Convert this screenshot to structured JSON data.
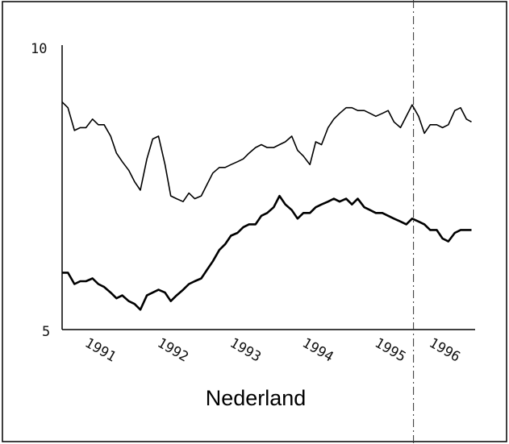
{
  "chart_data": {
    "type": "line",
    "title": "",
    "caption": "Nederland",
    "xlabel": "",
    "ylabel": "",
    "ylim": [
      5,
      10
    ],
    "yticks": [
      "10",
      "5"
    ],
    "xlim": [
      1990.25,
      1995.95
    ],
    "xticks": [
      "1991",
      "1992",
      "1993",
      "1994",
      "1995",
      "1996"
    ],
    "xtick_values": [
      1990.75,
      1991.75,
      1992.75,
      1993.75,
      1994.75,
      1995.5
    ],
    "grid": false,
    "legend": "none",
    "vline_x": 1995.1,
    "series": [
      {
        "x": [
          1990.25,
          1990.33,
          1990.42,
          1990.5,
          1990.58,
          1990.67,
          1990.75,
          1990.83,
          1990.92,
          1991.0,
          1991.08,
          1991.17,
          1991.25,
          1991.33,
          1991.42,
          1991.5,
          1991.58,
          1991.67,
          1991.75,
          1991.83,
          1991.92,
          1992.0,
          1992.08,
          1992.17,
          1992.25,
          1992.33,
          1992.42,
          1992.5,
          1992.58,
          1992.67,
          1992.75,
          1992.83,
          1992.92,
          1993.0,
          1993.08,
          1993.17,
          1993.25,
          1993.33,
          1993.42,
          1993.5,
          1993.58,
          1993.67,
          1993.75,
          1993.83,
          1993.92,
          1994.0,
          1994.08,
          1994.17,
          1994.25,
          1994.33,
          1994.42,
          1994.5,
          1994.58,
          1994.67,
          1994.75,
          1994.83,
          1994.92,
          1995.0,
          1995.08,
          1995.17,
          1995.25,
          1995.33,
          1995.42,
          1995.5,
          1995.58,
          1995.67,
          1995.75,
          1995.83,
          1995.9
        ],
        "values": [
          9.0,
          8.9,
          8.5,
          8.55,
          8.55,
          8.7,
          8.6,
          8.6,
          8.4,
          8.1,
          7.95,
          7.8,
          7.6,
          7.45,
          8.0,
          8.35,
          8.4,
          7.9,
          7.35,
          7.3,
          7.25,
          7.4,
          7.3,
          7.35,
          7.55,
          7.75,
          7.85,
          7.85,
          7.9,
          7.95,
          8.0,
          8.1,
          8.2,
          8.25,
          8.2,
          8.2,
          8.25,
          8.3,
          8.4,
          8.15,
          8.05,
          7.9,
          8.3,
          8.25,
          8.55,
          8.7,
          8.8,
          8.9,
          8.9,
          8.85,
          8.85,
          8.8,
          8.75,
          8.8,
          8.85,
          8.65,
          8.55,
          8.75,
          8.95,
          8.75,
          8.45,
          8.6,
          8.6,
          8.55,
          8.6,
          8.85,
          8.9,
          8.7,
          8.65
        ]
      },
      {
        "x": [
          1990.25,
          1990.33,
          1990.42,
          1990.5,
          1990.58,
          1990.67,
          1990.75,
          1990.83,
          1990.92,
          1991.0,
          1991.08,
          1991.17,
          1991.25,
          1991.33,
          1991.42,
          1991.5,
          1991.58,
          1991.67,
          1991.75,
          1991.83,
          1991.92,
          1992.0,
          1992.08,
          1992.17,
          1992.25,
          1992.33,
          1992.42,
          1992.5,
          1992.58,
          1992.67,
          1992.75,
          1992.83,
          1992.92,
          1993.0,
          1993.08,
          1993.17,
          1993.25,
          1993.33,
          1993.42,
          1993.5,
          1993.58,
          1993.67,
          1993.75,
          1993.83,
          1993.92,
          1994.0,
          1994.08,
          1994.17,
          1994.25,
          1994.33,
          1994.42,
          1994.5,
          1994.58,
          1994.67,
          1994.75,
          1994.83,
          1994.92,
          1995.0,
          1995.08,
          1995.17,
          1995.25,
          1995.33,
          1995.42,
          1995.5,
          1995.58,
          1995.67,
          1995.75,
          1995.83,
          1995.9
        ],
        "values": [
          6.0,
          6.0,
          5.8,
          5.85,
          5.85,
          5.9,
          5.8,
          5.75,
          5.65,
          5.55,
          5.6,
          5.5,
          5.45,
          5.35,
          5.6,
          5.65,
          5.7,
          5.65,
          5.5,
          5.6,
          5.7,
          5.8,
          5.85,
          5.9,
          6.05,
          6.2,
          6.4,
          6.5,
          6.65,
          6.7,
          6.8,
          6.85,
          6.85,
          7.0,
          7.05,
          7.15,
          7.35,
          7.2,
          7.1,
          6.95,
          7.05,
          7.05,
          7.15,
          7.2,
          7.25,
          7.3,
          7.25,
          7.3,
          7.2,
          7.3,
          7.15,
          7.1,
          7.05,
          7.05,
          7.0,
          6.95,
          6.9,
          6.85,
          6.95,
          6.9,
          6.85,
          6.75,
          6.75,
          6.6,
          6.55,
          6.7,
          6.75,
          6.75,
          6.75
        ]
      }
    ]
  }
}
